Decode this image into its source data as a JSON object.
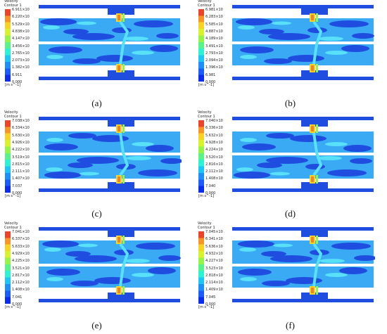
{
  "legend_title": [
    "Velocity",
    "Contour 1"
  ],
  "units": "[m s^-1]",
  "colors": {
    "deep": "#1f4de0",
    "light": "#3aaaf5",
    "cyan": "#58e1f8",
    "jet_scale": [
      "#0d2de8",
      "#1d5cf5",
      "#1f8ff5",
      "#1fc5f3",
      "#2ff2d4",
      "#5bf28a",
      "#98f24c",
      "#d8f230",
      "#f6d326",
      "#f6962a",
      "#e9452a"
    ]
  },
  "panels": [
    {
      "label": "(a)",
      "ticks": [
        "6.911×10",
        "6.220×10",
        "5.529×10",
        "4.838×10",
        "4.147×10",
        "3.456×10",
        "2.765×10",
        "2.073×10",
        "1.382×10",
        "6.911",
        "0.000"
      ]
    },
    {
      "label": "(b)",
      "ticks": [
        "6.981×10",
        "6.283×10",
        "5.585×10",
        "4.887×10",
        "4.189×10",
        "3.491×10",
        "2.793×10",
        "2.094×10",
        "1.396×10",
        "6.981",
        "0.000"
      ]
    },
    {
      "label": "(c)",
      "ticks": [
        "7.038×10",
        "6.334×10",
        "5.630×10",
        "4.926×10",
        "4.222×10",
        "3.519×10",
        "2.815×10",
        "2.111×10",
        "1.407×10",
        "7.037",
        "0.000"
      ]
    },
    {
      "label": "(d)",
      "ticks": [
        "7.040×10",
        "6.336×10",
        "5.632×10",
        "4.928×10",
        "4.224×10",
        "3.520×10",
        "2.816×10",
        "2.112×10",
        "1.408×10",
        "7.040",
        "0.000"
      ]
    },
    {
      "label": "(e)",
      "ticks": [
        "7.041×10",
        "6.337×10",
        "5.633×10",
        "4.929×10",
        "4.225×10",
        "3.521×10",
        "2.817×10",
        "2.112×10",
        "1.408×10",
        "7.041",
        "0.000"
      ]
    },
    {
      "label": "(f)",
      "ticks": [
        "7.045×10",
        "6.341×10",
        "5.636×10",
        "4.932×10",
        "4.227×10",
        "3.523×10",
        "2.818×10",
        "2.114×10",
        "1.409×10",
        "7.045",
        "0.000"
      ]
    }
  ]
}
